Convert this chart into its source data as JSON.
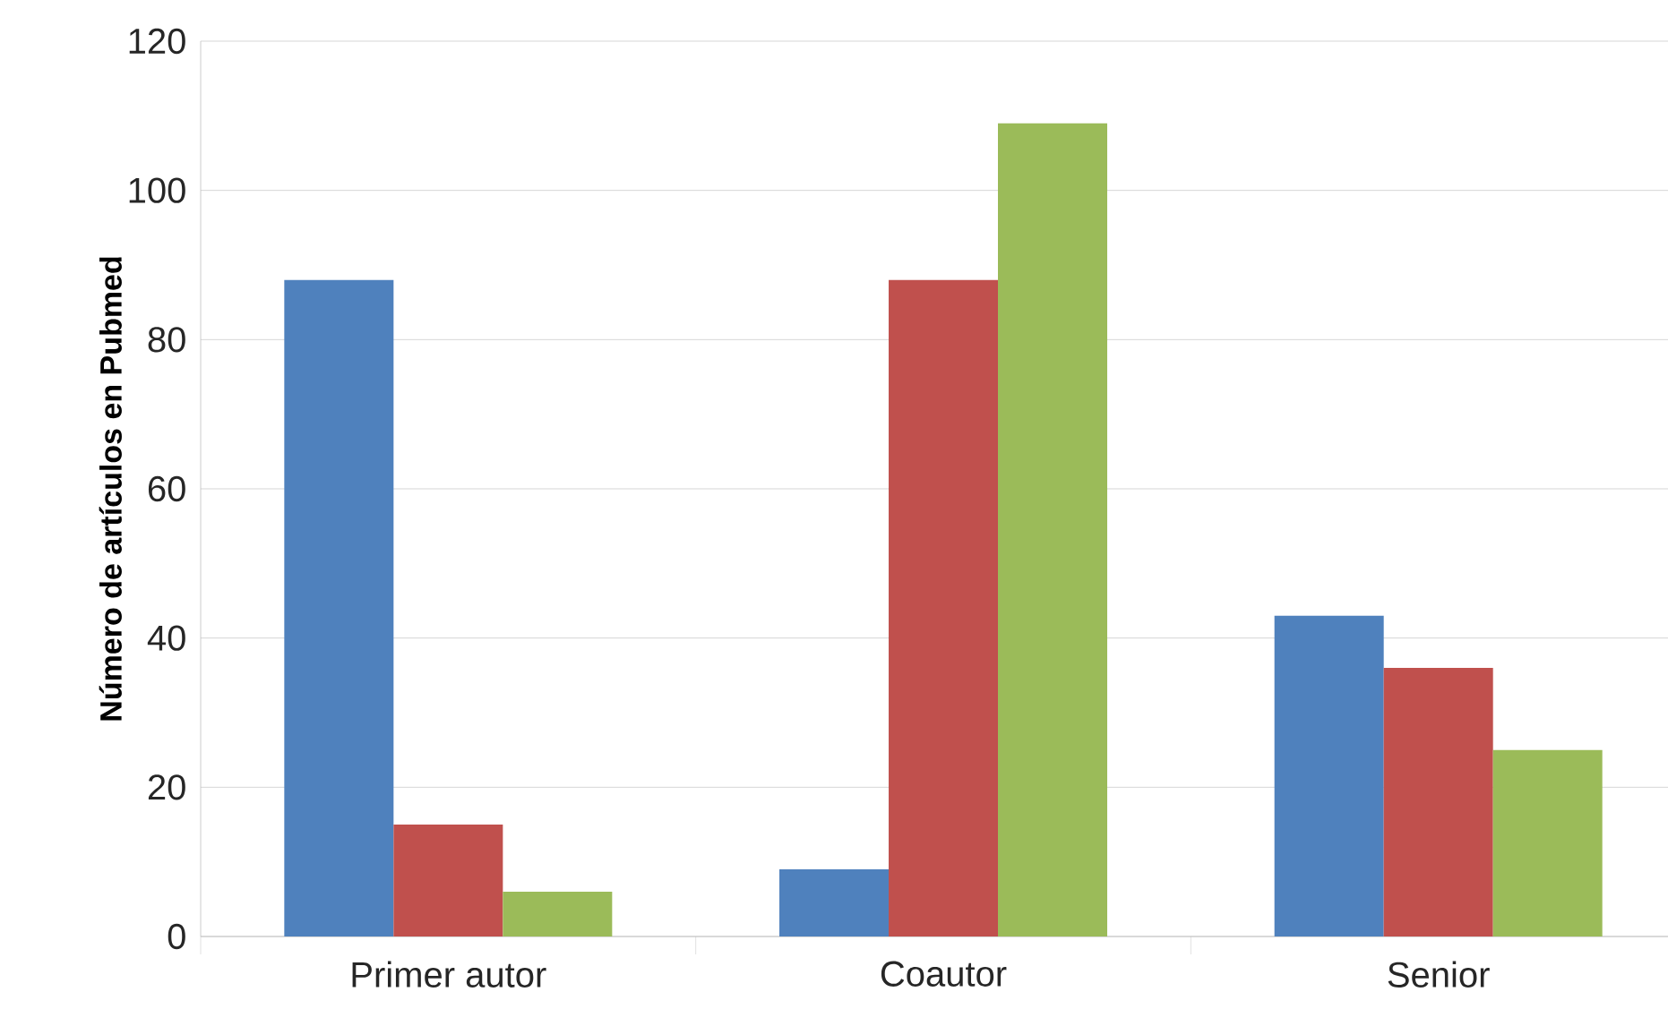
{
  "chart_data": {
    "type": "bar",
    "ylabel": "**Número de artículos en Pubmed**",
    "categories": [
      "Primer autor",
      "Coautor",
      "Senior"
    ],
    "series": [
      {
        "color": "#4f81bd",
        "values": [
          88,
          9,
          43
        ]
      },
      {
        "color": "#c0504d",
        "values": [
          15,
          88,
          36
        ]
      },
      {
        "color": "#9bbb59",
        "values": [
          6,
          109,
          25
        ]
      }
    ],
    "ylim": [
      0,
      120
    ],
    "yticks": [
      0,
      20,
      40,
      60,
      80,
      100,
      120
    ],
    "grid": "y"
  }
}
